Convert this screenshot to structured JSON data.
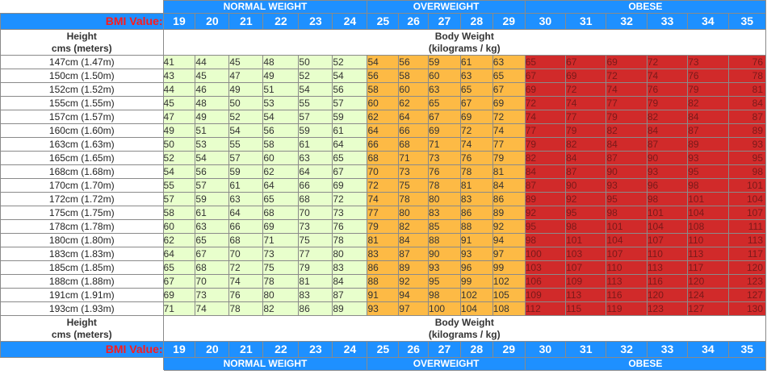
{
  "categories": {
    "normal": "NORMAL WEIGHT",
    "overweight": "OVERWEIGHT",
    "obese": "OBESE"
  },
  "bmi_label": "BMI Value:",
  "bmi_values": [
    "19",
    "20",
    "21",
    "22",
    "23",
    "24",
    "25",
    "26",
    "27",
    "28",
    "29",
    "30",
    "31",
    "32",
    "33",
    "34",
    "35"
  ],
  "height_header": {
    "line1": "Height",
    "line2": "cms (meters)"
  },
  "weight_header": {
    "line1": "Body Weight",
    "line2": "(kilograms / kg)"
  },
  "colors": {
    "header_blue": "#1e90ff",
    "bmi_label_red": "#ff1a1a",
    "normal_green": "#e8ffcc",
    "overweight_orange": "#fdba45",
    "obese_red": "#d12a2a"
  },
  "rows": [
    {
      "height": "147cm (1.47m)",
      "weights": [
        "41",
        "44",
        "45",
        "48",
        "50",
        "52",
        "54",
        "56",
        "59",
        "61",
        "63",
        "65",
        "67",
        "69",
        "72",
        "73",
        "76"
      ]
    },
    {
      "height": "150cm (1.50m)",
      "weights": [
        "43",
        "45",
        "47",
        "49",
        "52",
        "54",
        "56",
        "58",
        "60",
        "63",
        "65",
        "67",
        "69",
        "72",
        "74",
        "76",
        "78"
      ]
    },
    {
      "height": "152cm (1.52m)",
      "weights": [
        "44",
        "46",
        "49",
        "51",
        "54",
        "56",
        "58",
        "60",
        "63",
        "65",
        "67",
        "69",
        "72",
        "74",
        "76",
        "79",
        "81"
      ]
    },
    {
      "height": "155cm (1.55m)",
      "weights": [
        "45",
        "48",
        "50",
        "53",
        "55",
        "57",
        "60",
        "62",
        "65",
        "67",
        "69",
        "72",
        "74",
        "77",
        "79",
        "82",
        "84"
      ]
    },
    {
      "height": "157cm (1.57m)",
      "weights": [
        "47",
        "49",
        "52",
        "54",
        "57",
        "59",
        "62",
        "64",
        "67",
        "69",
        "72",
        "74",
        "77",
        "79",
        "82",
        "84",
        "87"
      ]
    },
    {
      "height": "160cm (1.60m)",
      "weights": [
        "49",
        "51",
        "54",
        "56",
        "59",
        "61",
        "64",
        "66",
        "69",
        "72",
        "74",
        "77",
        "79",
        "82",
        "84",
        "87",
        "89"
      ]
    },
    {
      "height": "163cm (1.63m)",
      "weights": [
        "50",
        "53",
        "55",
        "58",
        "61",
        "64",
        "66",
        "68",
        "71",
        "74",
        "77",
        "79",
        "82",
        "84",
        "87",
        "89",
        "93"
      ]
    },
    {
      "height": "165cm (1.65m)",
      "weights": [
        "52",
        "54",
        "57",
        "60",
        "63",
        "65",
        "68",
        "71",
        "73",
        "76",
        "79",
        "82",
        "84",
        "87",
        "90",
        "93",
        "95"
      ]
    },
    {
      "height": "168cm (1.68m)",
      "weights": [
        "54",
        "56",
        "59",
        "62",
        "64",
        "67",
        "70",
        "73",
        "76",
        "78",
        "81",
        "84",
        "87",
        "90",
        "93",
        "95",
        "98"
      ]
    },
    {
      "height": "170cm (1.70m)",
      "weights": [
        "55",
        "57",
        "61",
        "64",
        "66",
        "69",
        "72",
        "75",
        "78",
        "81",
        "84",
        "87",
        "90",
        "93",
        "96",
        "98",
        "101"
      ]
    },
    {
      "height": "172cm (1.72m)",
      "weights": [
        "57",
        "59",
        "63",
        "65",
        "68",
        "72",
        "74",
        "78",
        "80",
        "83",
        "86",
        "89",
        "92",
        "95",
        "98",
        "101",
        "104"
      ]
    },
    {
      "height": "175cm (1.75m)",
      "weights": [
        "58",
        "61",
        "64",
        "68",
        "70",
        "73",
        "77",
        "80",
        "83",
        "86",
        "89",
        "92",
        "95",
        "98",
        "101",
        "104",
        "107"
      ]
    },
    {
      "height": "178cm (1.78m)",
      "weights": [
        "60",
        "63",
        "66",
        "69",
        "73",
        "76",
        "79",
        "82",
        "85",
        "88",
        "92",
        "95",
        "98",
        "101",
        "104",
        "108",
        "111"
      ]
    },
    {
      "height": "180cm (1.80m)",
      "weights": [
        "62",
        "65",
        "68",
        "71",
        "75",
        "78",
        "81",
        "84",
        "88",
        "91",
        "94",
        "98",
        "101",
        "104",
        "107",
        "110",
        "113"
      ]
    },
    {
      "height": "183cm (1.83m)",
      "weights": [
        "64",
        "67",
        "70",
        "73",
        "77",
        "80",
        "83",
        "87",
        "90",
        "93",
        "97",
        "100",
        "103",
        "107",
        "110",
        "113",
        "117"
      ]
    },
    {
      "height": "185cm (1.85m)",
      "weights": [
        "65",
        "68",
        "72",
        "75",
        "79",
        "83",
        "86",
        "89",
        "93",
        "96",
        "99",
        "103",
        "107",
        "110",
        "113",
        "117",
        "120"
      ]
    },
    {
      "height": "188cm (1.88m)",
      "weights": [
        "67",
        "70",
        "74",
        "78",
        "81",
        "84",
        "88",
        "92",
        "95",
        "99",
        "102",
        "106",
        "109",
        "113",
        "116",
        "120",
        "123"
      ]
    },
    {
      "height": "191cm (1.91m)",
      "weights": [
        "69",
        "73",
        "76",
        "80",
        "83",
        "87",
        "91",
        "94",
        "98",
        "102",
        "105",
        "109",
        "113",
        "116",
        "120",
        "124",
        "127"
      ]
    },
    {
      "height": "193cm (1.93m)",
      "weights": [
        "71",
        "74",
        "78",
        "82",
        "86",
        "89",
        "93",
        "97",
        "100",
        "104",
        "108",
        "112",
        "115",
        "119",
        "123",
        "127",
        "130"
      ]
    }
  ]
}
